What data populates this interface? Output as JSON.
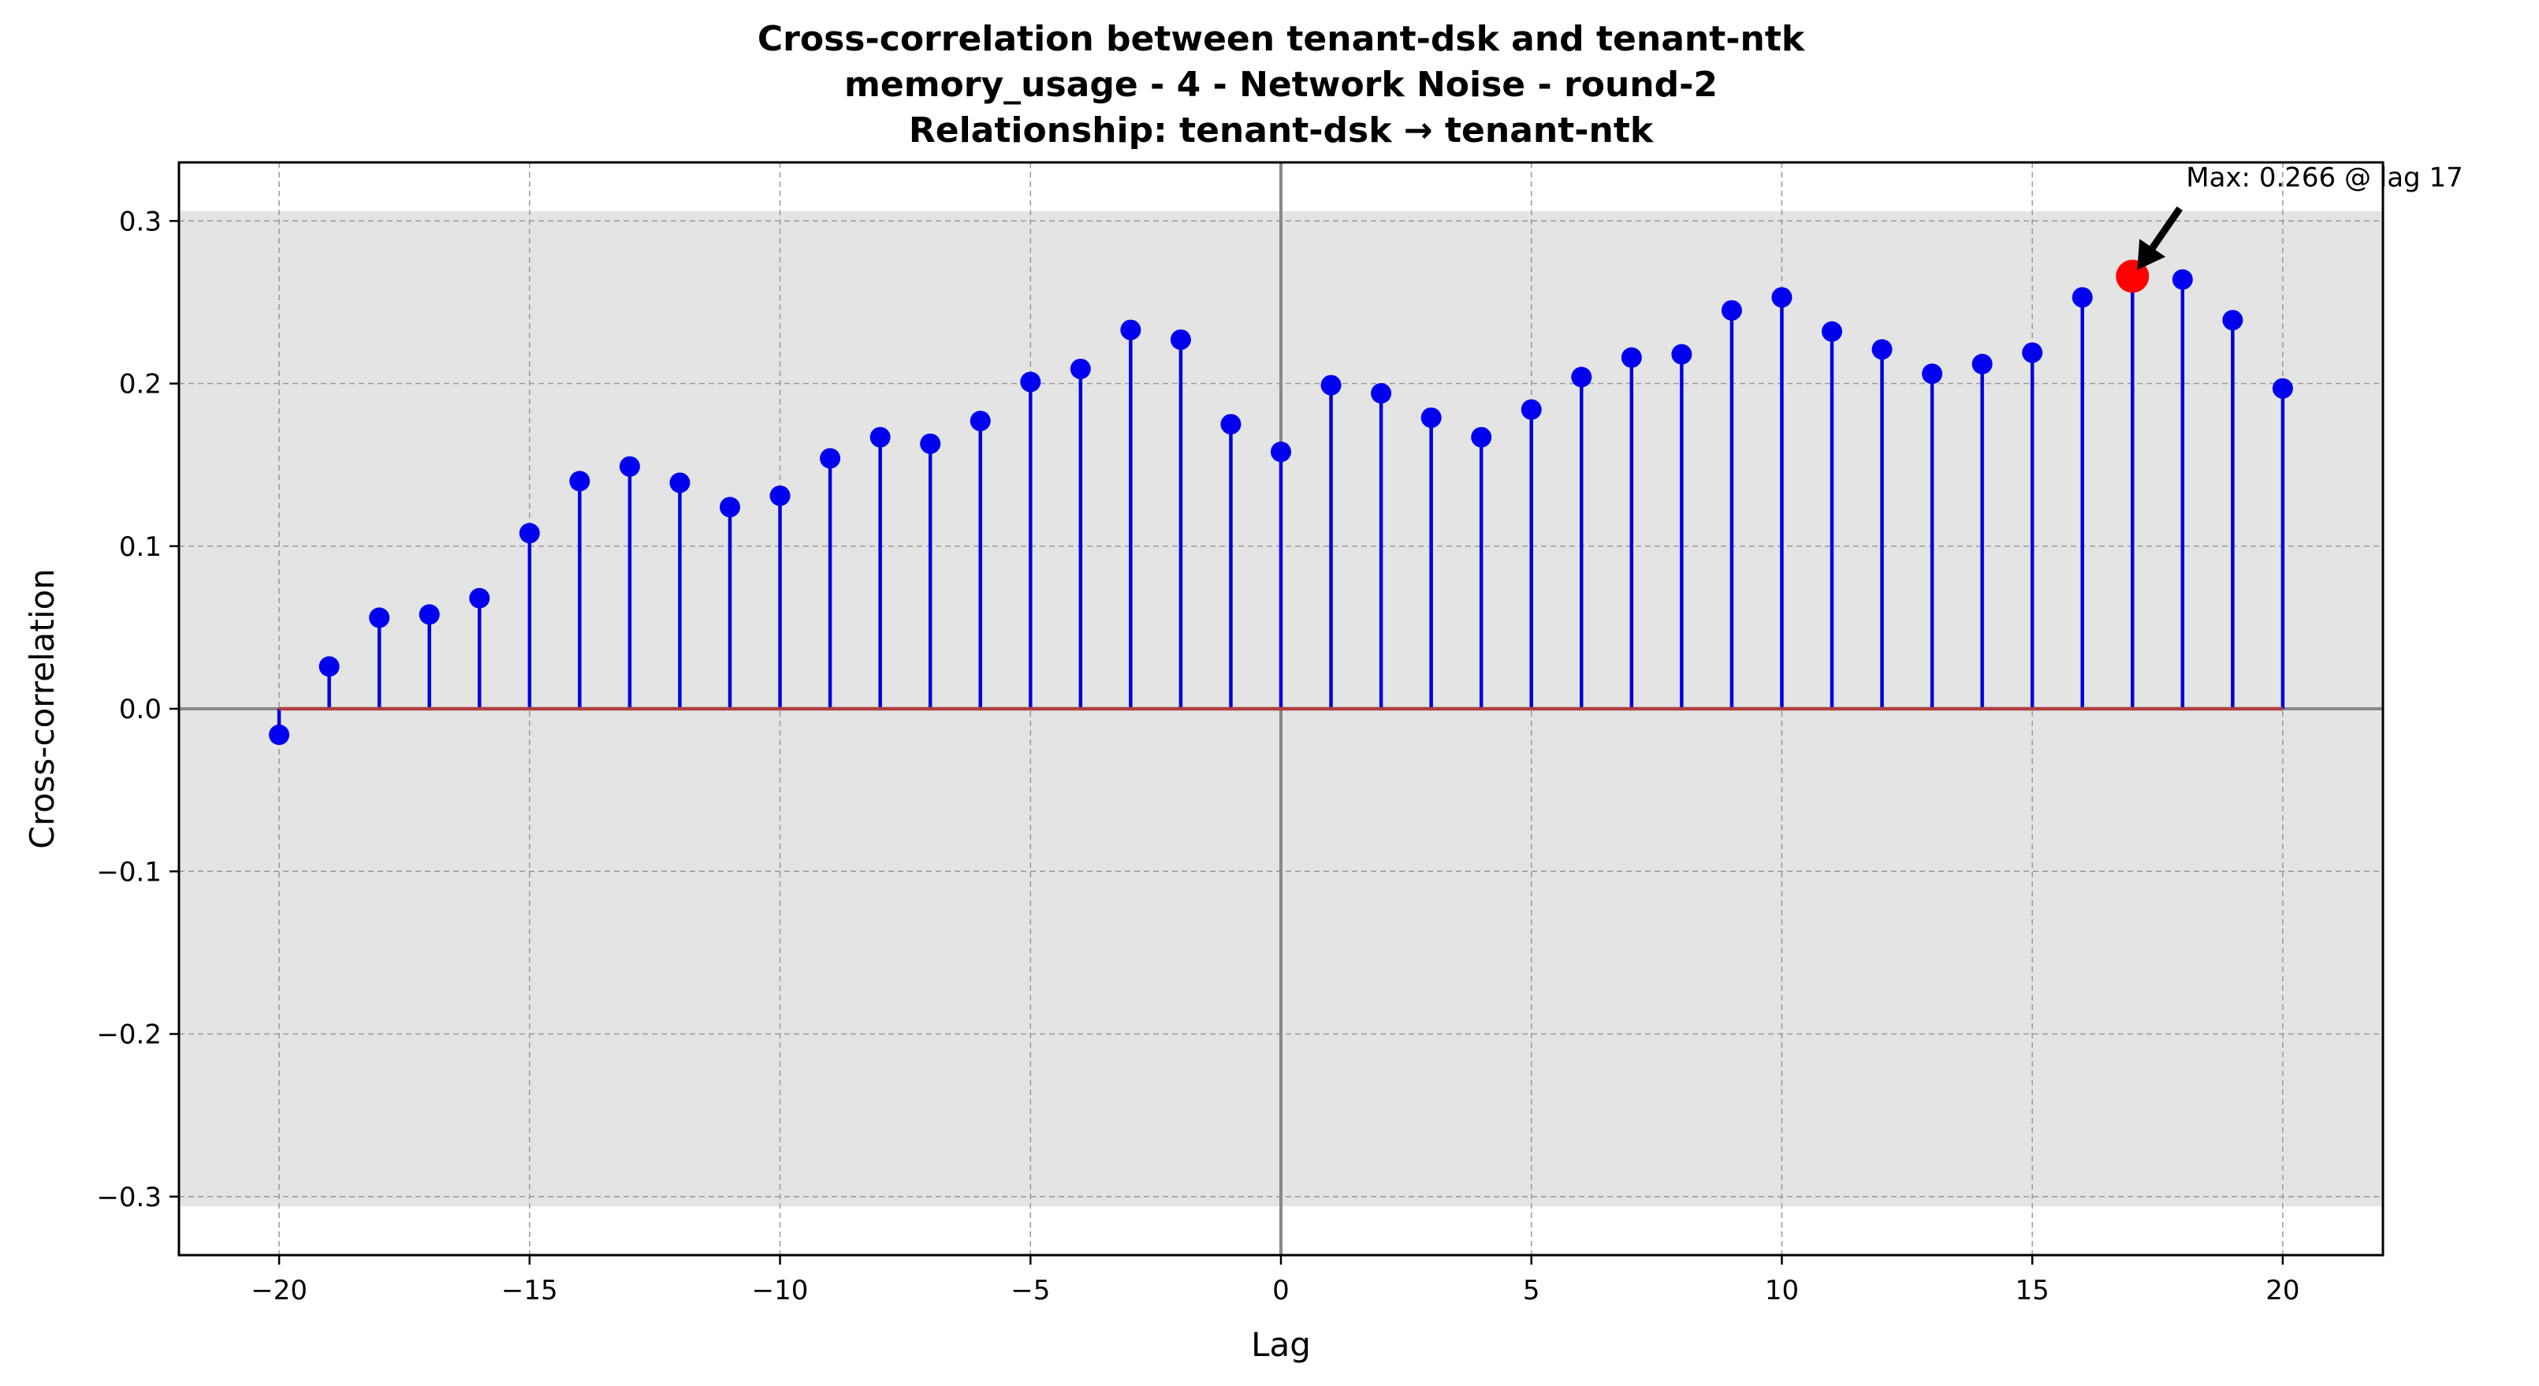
{
  "chart_data": {
    "type": "stem",
    "title_lines": [
      "Cross-correlation between tenant-dsk and tenant-ntk",
      "memory_usage - 4 - Network Noise - round-2",
      "Relationship: tenant-dsk → tenant-ntk"
    ],
    "xlabel": "Lag",
    "ylabel": "Cross-correlation",
    "xlim": [
      -22,
      22
    ],
    "ylim": [
      -0.336,
      0.336
    ],
    "xticks": [
      -20,
      -15,
      -10,
      -5,
      0,
      5,
      10,
      15,
      20
    ],
    "yticks": [
      -0.3,
      -0.2,
      -0.1,
      0.0,
      0.1,
      0.2,
      0.3
    ],
    "xtick_labels": [
      "−20",
      "−15",
      "−10",
      "−5",
      "0",
      "5",
      "10",
      "15",
      "20"
    ],
    "ytick_labels": [
      "−0.3",
      "−0.2",
      "−0.1",
      "0.0",
      "0.1",
      "0.2",
      "0.3"
    ],
    "grid": true,
    "confidence_band": [
      -0.306,
      0.306
    ],
    "lags": [
      -20,
      -19,
      -18,
      -17,
      -16,
      -15,
      -14,
      -13,
      -12,
      -11,
      -10,
      -9,
      -8,
      -7,
      -6,
      -5,
      -4,
      -3,
      -2,
      -1,
      0,
      1,
      2,
      3,
      4,
      5,
      6,
      7,
      8,
      9,
      10,
      11,
      12,
      13,
      14,
      15,
      16,
      17,
      18,
      19,
      20
    ],
    "values": [
      -0.016,
      0.026,
      0.056,
      0.058,
      0.068,
      0.108,
      0.14,
      0.149,
      0.139,
      0.124,
      0.131,
      0.154,
      0.167,
      0.163,
      0.177,
      0.201,
      0.209,
      0.233,
      0.227,
      0.175,
      0.158,
      0.199,
      0.194,
      0.179,
      0.167,
      0.184,
      0.204,
      0.216,
      0.218,
      0.245,
      0.253,
      0.232,
      0.221,
      0.206,
      0.212,
      0.219,
      0.253,
      0.266,
      0.264,
      0.239,
      0.197
    ],
    "max_point": {
      "lag": 17,
      "value": 0.266
    },
    "annotation_text": "Max: 0.266 @ lag 17",
    "colors": {
      "stem": "#0000dd",
      "marker": "#0000ee",
      "baseline": "#b04040",
      "max_marker": "#ff0000",
      "band": "#e4e4e4",
      "grid": "#999999",
      "zero_lines": "#888888"
    }
  }
}
